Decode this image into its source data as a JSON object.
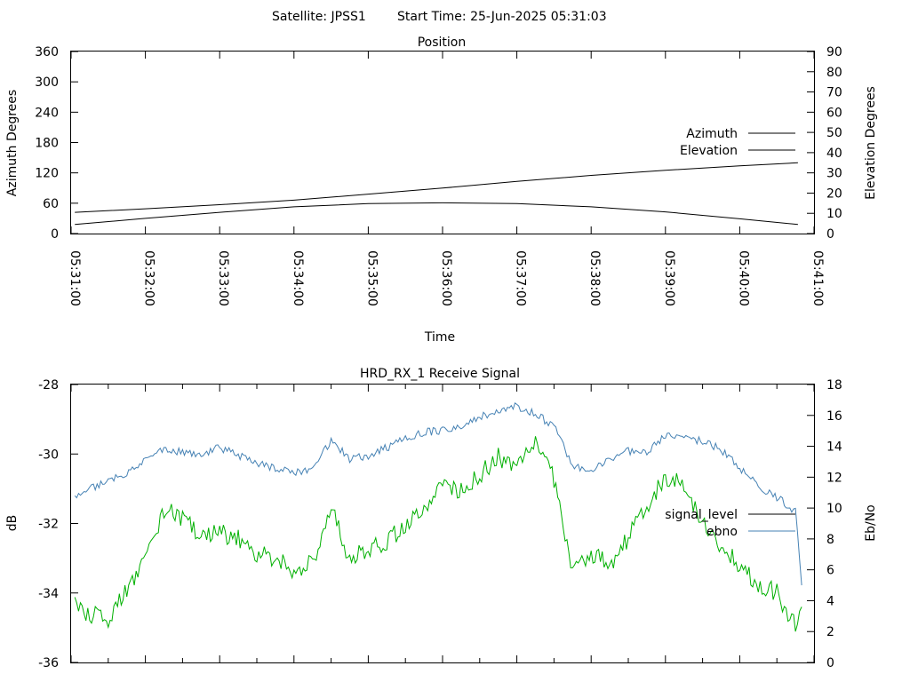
{
  "header": {
    "satellite_label": "Satellite: JPSS1",
    "start_time_label": "Start Time: 25-Jun-2025 05:31:03"
  },
  "colors": {
    "azimuth": "#b22222",
    "elevation": "#4682b4",
    "signal_level": "#00b000",
    "signal_level_key": "#000000",
    "ebno": "#4682b4"
  },
  "chart_data": [
    {
      "type": "line",
      "title": "Position",
      "xlabel": "Time",
      "ylabel": "Azimuth Degrees",
      "y2label": "Elevation Degrees",
      "xlim": [
        "05:31:00",
        "05:41:00"
      ],
      "ylim": [
        0,
        360
      ],
      "y2lim": [
        0,
        90
      ],
      "x_ticks": [
        "05:31:00",
        "05:32:00",
        "05:33:00",
        "05:34:00",
        "05:35:00",
        "05:36:00",
        "05:37:00",
        "05:38:00",
        "05:39:00",
        "05:40:00",
        "05:41:00"
      ],
      "y_ticks": [
        "0",
        "60",
        "120",
        "180",
        "240",
        "300",
        "360"
      ],
      "y2_ticks": [
        "0",
        "10",
        "20",
        "30",
        "40",
        "50",
        "60",
        "70",
        "80",
        "90"
      ],
      "grid": false,
      "legend_position": "right",
      "series": [
        {
          "name": "Azimuth",
          "axis": "y",
          "x": [
            "05:31:03",
            "05:32:00",
            "05:33:00",
            "05:34:00",
            "05:35:00",
            "05:36:00",
            "05:37:00",
            "05:38:00",
            "05:39:00",
            "05:40:00",
            "05:40:47"
          ],
          "values": [
            42,
            49,
            57,
            66,
            78,
            90,
            103,
            115,
            125,
            134,
            140
          ]
        },
        {
          "name": "Elevation",
          "axis": "y2",
          "x": [
            "05:31:03",
            "05:32:00",
            "05:33:00",
            "05:34:00",
            "05:35:00",
            "05:36:00",
            "05:37:00",
            "05:38:00",
            "05:39:00",
            "05:40:00",
            "05:40:47"
          ],
          "values": [
            4.5,
            7.5,
            10.5,
            13.2,
            14.8,
            15.2,
            14.8,
            13.2,
            10.7,
            7.3,
            4.5
          ]
        }
      ]
    },
    {
      "type": "line",
      "title": "HRD_RX_1 Receive Signal",
      "xlabel": "",
      "ylabel": "dB",
      "y2label": "Eb/No",
      "xlim": [
        "05:31:00",
        "05:41:00"
      ],
      "ylim": [
        -36,
        -28
      ],
      "y2lim": [
        0,
        18
      ],
      "y_ticks": [
        "-28",
        "-30",
        "-32",
        "-34",
        "-36"
      ],
      "y2_ticks": [
        "0",
        "2",
        "4",
        "6",
        "8",
        "10",
        "12",
        "14",
        "16",
        "18"
      ],
      "grid": false,
      "legend_position": "right",
      "series": [
        {
          "name": "signal_level",
          "axis": "y",
          "x": [
            "05:31:03",
            "05:31:15",
            "05:31:30",
            "05:31:45",
            "05:32:00",
            "05:32:15",
            "05:32:30",
            "05:32:45",
            "05:33:00",
            "05:33:15",
            "05:33:30",
            "05:33:45",
            "05:34:00",
            "05:34:15",
            "05:34:30",
            "05:34:45",
            "05:35:00",
            "05:35:15",
            "05:35:30",
            "05:35:45",
            "05:36:00",
            "05:36:15",
            "05:36:30",
            "05:36:45",
            "05:37:00",
            "05:37:15",
            "05:37:30",
            "05:37:45",
            "05:38:00",
            "05:38:15",
            "05:38:30",
            "05:38:45",
            "05:39:00",
            "05:39:15",
            "05:39:30",
            "05:39:45",
            "05:40:00",
            "05:40:15",
            "05:40:30",
            "05:40:45",
            "05:40:50"
          ],
          "values": [
            -34.3,
            -34.6,
            -34.8,
            -33.9,
            -33.0,
            -31.6,
            -31.9,
            -32.3,
            -32.3,
            -32.4,
            -32.9,
            -33.0,
            -33.4,
            -33.1,
            -31.6,
            -33.0,
            -32.7,
            -32.5,
            -32.1,
            -31.5,
            -31.0,
            -31.1,
            -30.6,
            -30.1,
            -30.4,
            -29.6,
            -30.7,
            -33.3,
            -32.9,
            -33.2,
            -32.4,
            -31.5,
            -30.7,
            -30.9,
            -32.0,
            -32.6,
            -33.2,
            -33.7,
            -34.0,
            -35.0,
            -34.4
          ]
        },
        {
          "name": "ebno",
          "axis": "y2",
          "x": [
            "05:31:03",
            "05:31:15",
            "05:31:30",
            "05:31:45",
            "05:32:00",
            "05:32:15",
            "05:32:30",
            "05:32:45",
            "05:33:00",
            "05:33:15",
            "05:33:30",
            "05:33:45",
            "05:34:00",
            "05:34:15",
            "05:34:30",
            "05:34:45",
            "05:35:00",
            "05:35:15",
            "05:35:30",
            "05:35:45",
            "05:36:00",
            "05:36:15",
            "05:36:30",
            "05:36:45",
            "05:37:00",
            "05:37:15",
            "05:37:30",
            "05:37:45",
            "05:38:00",
            "05:38:15",
            "05:38:30",
            "05:38:45",
            "05:39:00",
            "05:39:15",
            "05:39:30",
            "05:39:45",
            "05:40:00",
            "05:40:15",
            "05:40:30",
            "05:40:45",
            "05:40:50"
          ],
          "values": [
            10.8,
            11.2,
            11.9,
            12.2,
            13.1,
            13.8,
            13.6,
            13.5,
            13.9,
            13.4,
            12.9,
            12.6,
            12.3,
            12.4,
            14.4,
            13.2,
            13.4,
            13.9,
            14.5,
            14.9,
            15.0,
            15.3,
            15.9,
            16.3,
            16.6,
            16.1,
            15.3,
            12.8,
            12.4,
            13.2,
            13.7,
            13.6,
            14.7,
            14.6,
            14.3,
            13.8,
            12.6,
            11.4,
            10.7,
            9.8,
            5.0
          ]
        }
      ]
    }
  ]
}
